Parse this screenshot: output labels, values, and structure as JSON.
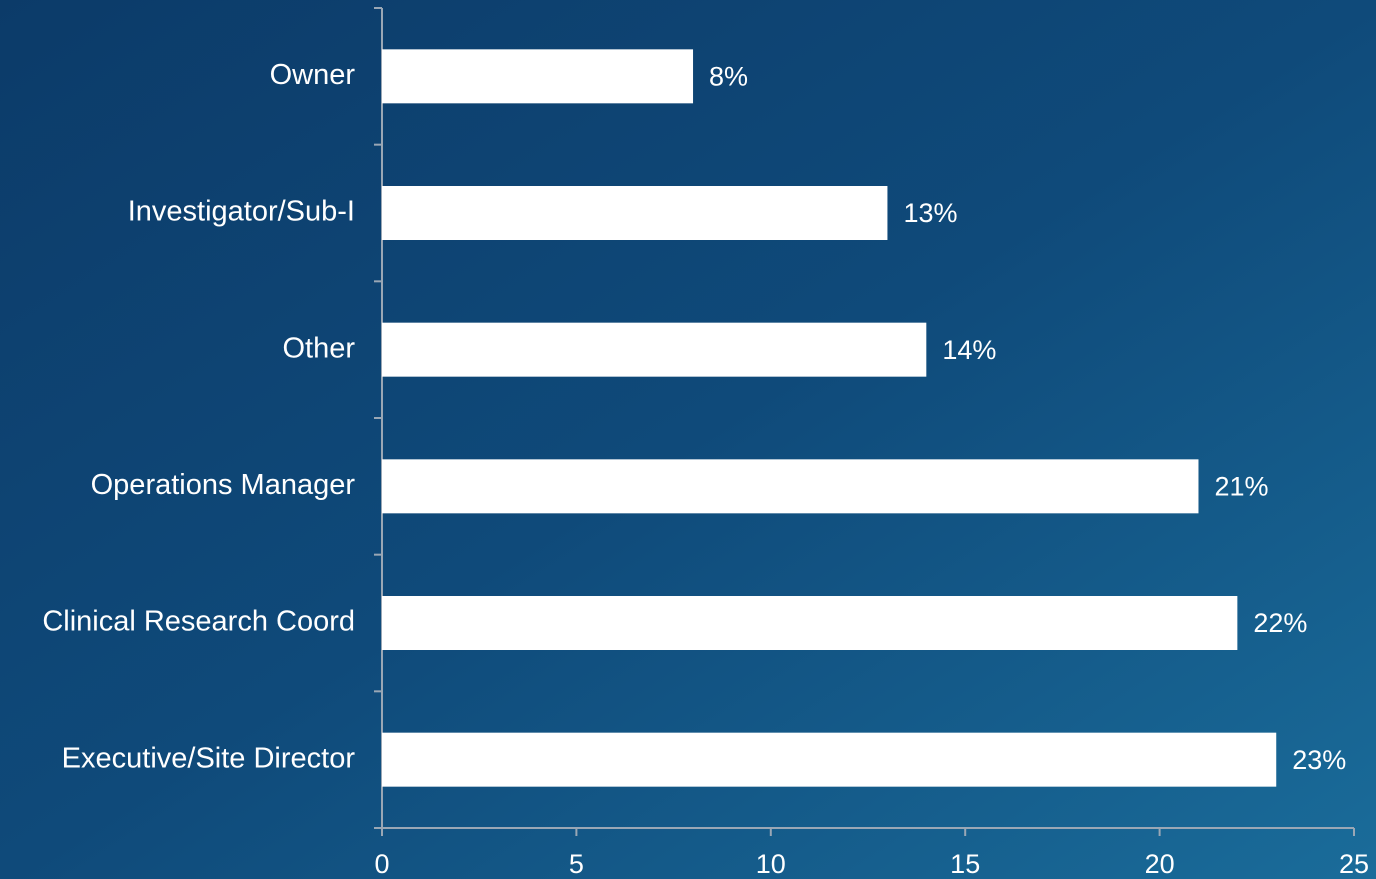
{
  "chart_data": {
    "type": "bar",
    "orientation": "horizontal",
    "categories": [
      "Owner",
      "Investigator/Sub-I",
      "Other",
      "Operations Manager",
      "Clinical Research Coord",
      "Executive/Site Director"
    ],
    "values": [
      8,
      13,
      14,
      21,
      22,
      23
    ],
    "value_labels": [
      "8%",
      "13%",
      "14%",
      "21%",
      "22%",
      "23%"
    ],
    "color": "#ffffff",
    "xlim": [
      0,
      25
    ],
    "xticks": [
      0,
      5,
      10,
      15,
      20,
      25
    ],
    "grid": false
  }
}
